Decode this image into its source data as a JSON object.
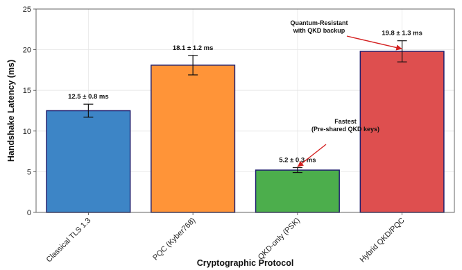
{
  "chart_data": {
    "type": "bar",
    "title": "",
    "xlabel": "Cryptographic Protocol",
    "ylabel": "Handshake Latency (ms)",
    "ylim": [
      0,
      25
    ],
    "yticks": [
      0,
      5,
      10,
      15,
      20,
      25
    ],
    "grid": true,
    "categories": [
      "Classical TLS 1.3",
      "PQC (Kyber768)",
      "QKD-only (PSK)",
      "Hybrid QKD/PQC"
    ],
    "values": [
      12.5,
      18.1,
      5.2,
      19.8
    ],
    "errors": [
      0.8,
      1.2,
      0.3,
      1.3
    ],
    "data_labels": [
      "12.5 ± 0.8 ms",
      "18.1 ± 1.2 ms",
      "5.2 ± 0.3 ms",
      "19.8 ± 1.3 ms"
    ],
    "colors": [
      "#3d85c6",
      "#ff9438",
      "#4cae4c",
      "#de4f4f"
    ],
    "edge_color": "#1f1f6e",
    "annotations": [
      {
        "lines": [
          "Quantum-Resistant",
          "with QKD backup"
        ],
        "target_category": 3,
        "target_value": 20.1
      },
      {
        "lines": [
          "Fastest",
          "(Pre-shared QKD keys)"
        ],
        "target_category": 2,
        "target_value": 5.6
      }
    ]
  }
}
